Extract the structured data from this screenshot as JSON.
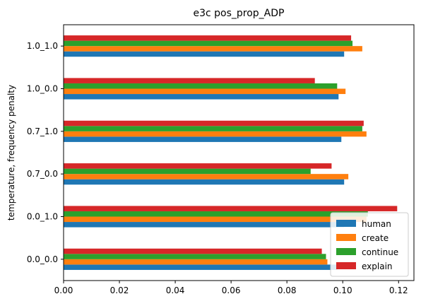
{
  "chart_data": {
    "type": "bar",
    "orientation": "horizontal",
    "title": "e3c pos_prop_ADP",
    "xlabel": "",
    "ylabel": "temperature, frequency penalty",
    "categories": [
      "0.0_0.0",
      "0.0_1.0",
      "0.7_0.0",
      "0.7_1.0",
      "1.0_0.0",
      "1.0_1.0"
    ],
    "xlim": [
      0,
      0.1255
    ],
    "xticks": [
      "0.00",
      "0.02",
      "0.04",
      "0.06",
      "0.08",
      "0.10",
      "0.12"
    ],
    "xtick_values": [
      0,
      0.02,
      0.04,
      0.06,
      0.08,
      0.1,
      0.12
    ],
    "grid": false,
    "legend_position": "bottom-right",
    "series": [
      {
        "name": "human",
        "color": "#1f77b4",
        "values": [
          0.098,
          0.1005,
          0.1005,
          0.0995,
          0.0985,
          0.1005
        ]
      },
      {
        "name": "create",
        "color": "#ff7f0e",
        "values": [
          0.0945,
          0.1085,
          0.102,
          0.1085,
          0.101,
          0.107
        ]
      },
      {
        "name": "continue",
        "color": "#2ca02c",
        "values": [
          0.094,
          0.109,
          0.0885,
          0.107,
          0.098,
          0.1035
        ]
      },
      {
        "name": "explain",
        "color": "#d62728",
        "values": [
          0.0925,
          0.1195,
          0.096,
          0.1075,
          0.09,
          0.103
        ]
      }
    ]
  }
}
